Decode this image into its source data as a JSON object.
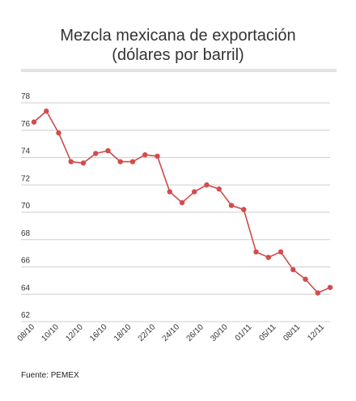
{
  "title_line1": "Mezcla mexicana de exportación",
  "title_line2": "(dólares por barril)",
  "source": "Fuente: PEMEX",
  "colors": {
    "line": "#cc4c4c",
    "point": "#d24d4d",
    "grid": "#cfcfcf",
    "title_bar": "#e3e3e3"
  },
  "chart_data": {
    "type": "line",
    "title": "Mezcla mexicana de exportación (dólares por barril)",
    "xlabel": "",
    "ylabel": "",
    "ylim": [
      62,
      78
    ],
    "yticks": [
      62,
      64,
      66,
      68,
      70,
      72,
      74,
      76,
      78
    ],
    "grid": true,
    "xtick_labels": [
      "08/10",
      "10/10",
      "12/10",
      "16/10",
      "18/10",
      "22/10",
      "24/10",
      "26/10",
      "30/10",
      "01/11",
      "05/11",
      "08/11",
      "12/11"
    ],
    "series": [
      {
        "values": [
          76.6,
          77.4,
          75.8,
          73.7,
          73.6,
          74.3,
          74.5,
          73.7,
          73.7,
          74.2,
          74.1,
          71.5,
          70.7,
          71.5,
          72.0,
          71.7,
          70.5,
          70.2,
          67.1,
          66.7,
          67.1,
          65.8,
          65.1,
          64.1,
          64.5
        ]
      }
    ]
  }
}
